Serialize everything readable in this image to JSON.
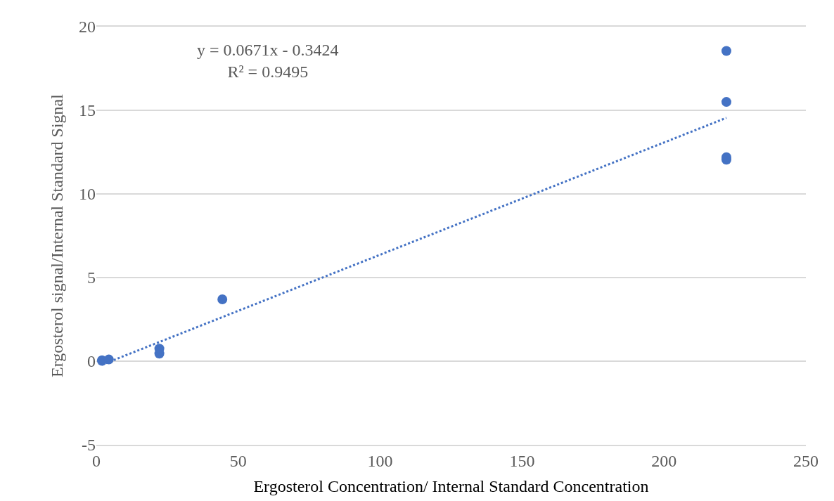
{
  "chart_data": {
    "type": "scatter",
    "xlabel": "Ergosterol Concentration/ Internal Standard Concentration",
    "ylabel": "Ergosterol signal/Internal Standard Signal",
    "annotations": [
      "y = 0.0671x - 0.3424",
      "R² = 0.9495"
    ],
    "series": [
      {
        "color": "#4472c4",
        "marker": "circle",
        "x": [
          2,
          2,
          4.4,
          22.2,
          22.2,
          44.4,
          222,
          222,
          222,
          222
        ],
        "values": [
          0.02,
          0.05,
          0.1,
          0.45,
          0.75,
          3.7,
          12.05,
          12.2,
          15.5,
          18.55
        ]
      },
      {
        "type": "line",
        "color": "#4472c4",
        "line_style": "dotted",
        "x": [
          2,
          222
        ],
        "values": [
          -0.21,
          14.55
        ]
      }
    ],
    "xlim": [
      0,
      250
    ],
    "xticks": [
      0,
      50,
      100,
      150,
      200,
      250
    ],
    "ylim": [
      -5,
      20
    ],
    "yticks": [
      -5,
      0,
      5,
      10,
      15,
      20
    ],
    "grid": "y",
    "legend": false
  }
}
